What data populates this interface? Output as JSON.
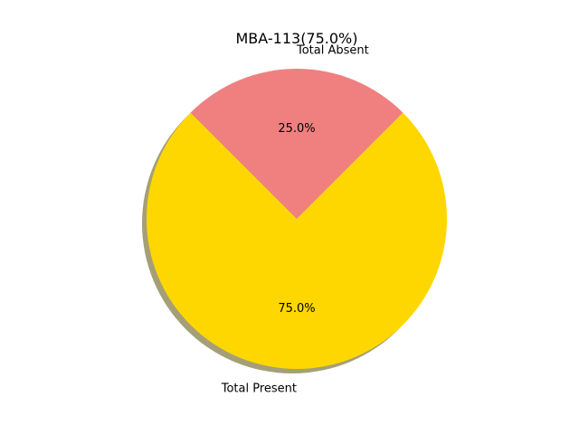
{
  "chart_data": {
    "type": "pie",
    "title": "MBA-113(75.0%)",
    "labels": [
      "Total Present",
      "Total Absent"
    ],
    "values": [
      75.0,
      25.0
    ],
    "percent_labels": [
      "75.0%",
      "25.0%"
    ],
    "colors": [
      "#ffd700",
      "#f08080"
    ],
    "shadow_color": "#a59f78",
    "shadow": true,
    "start_angle_deg": 135
  }
}
